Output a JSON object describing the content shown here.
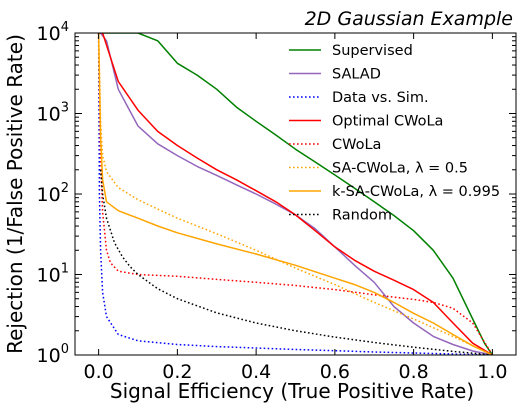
{
  "chart_data": {
    "type": "line",
    "title": "2D Gaussian Example",
    "xlabel": "Signal Efficiency (True Positive Rate)",
    "ylabel": "Rejection (1/False Positive Rate)",
    "xlim": [
      -0.06,
      1.06
    ],
    "ylim": [
      1,
      10000
    ],
    "yscale": "log",
    "legend_position": "upper-right",
    "x_ticks": [
      {
        "value": 0.0,
        "label": "0.0"
      },
      {
        "value": 0.2,
        "label": "0.2"
      },
      {
        "value": 0.4,
        "label": "0.4"
      },
      {
        "value": 0.6,
        "label": "0.6"
      },
      {
        "value": 0.8,
        "label": "0.8"
      },
      {
        "value": 1.0,
        "label": "1.0"
      }
    ],
    "y_ticks": [
      {
        "value": 1,
        "base": "10",
        "exp": "0"
      },
      {
        "value": 10,
        "base": "10",
        "exp": "1"
      },
      {
        "value": 100,
        "base": "10",
        "exp": "2"
      },
      {
        "value": 1000,
        "base": "10",
        "exp": "3"
      },
      {
        "value": 10000,
        "base": "10",
        "exp": "4"
      }
    ],
    "series": [
      {
        "name": "Supervised",
        "color": "#008000",
        "dash": "solid",
        "x": [
          0.0,
          0.05,
          0.1,
          0.15,
          0.2,
          0.25,
          0.3,
          0.35,
          0.4,
          0.45,
          0.5,
          0.55,
          0.6,
          0.65,
          0.7,
          0.75,
          0.8,
          0.85,
          0.9,
          0.95,
          0.98,
          1.0
        ],
        "y": [
          10000,
          10000,
          10000,
          8000,
          4200,
          3000,
          2000,
          1200,
          800,
          540,
          360,
          250,
          172,
          118,
          80,
          54,
          35,
          20,
          9,
          2.8,
          1.4,
          1.0
        ]
      },
      {
        "name": "SALAD",
        "color": "#9467bd",
        "dash": "solid",
        "x": [
          0.0,
          0.005,
          0.02,
          0.05,
          0.1,
          0.15,
          0.2,
          0.25,
          0.3,
          0.35,
          0.4,
          0.45,
          0.5,
          0.55,
          0.6,
          0.65,
          0.7,
          0.75,
          0.8,
          0.85,
          0.9,
          0.95,
          1.0
        ],
        "y": [
          10000,
          10000,
          8000,
          2000,
          700,
          420,
          300,
          220,
          170,
          130,
          100,
          75,
          55,
          37,
          22,
          13,
          8,
          4,
          2.5,
          1.7,
          1.35,
          1.12,
          1.0
        ]
      },
      {
        "name": "Data vs. Sim.",
        "color": "#0000ff",
        "dash": "dotted",
        "x": [
          0.0,
          0.002,
          0.005,
          0.01,
          0.02,
          0.05,
          0.1,
          0.2,
          0.3,
          0.4,
          0.5,
          0.6,
          0.7,
          0.8,
          0.9,
          1.0
        ],
        "y": [
          10000,
          100,
          20,
          6,
          3,
          1.8,
          1.5,
          1.35,
          1.27,
          1.22,
          1.17,
          1.13,
          1.09,
          1.06,
          1.03,
          1.0
        ]
      },
      {
        "name": "Optimal CWoLa",
        "color": "#ff0000",
        "dash": "solid",
        "x": [
          0.0,
          0.01,
          0.03,
          0.05,
          0.1,
          0.15,
          0.2,
          0.25,
          0.3,
          0.35,
          0.4,
          0.45,
          0.5,
          0.55,
          0.6,
          0.65,
          0.7,
          0.75,
          0.8,
          0.85,
          0.9,
          0.95,
          1.0
        ],
        "y": [
          10000,
          10000,
          5000,
          2500,
          1100,
          600,
          400,
          280,
          200,
          150,
          110,
          80,
          55,
          35,
          22,
          15,
          11,
          8.5,
          6.5,
          4.5,
          2.5,
          1.4,
          1.0
        ]
      },
      {
        "name": "CWoLa",
        "color": "#ff0000",
        "dash": "dotted",
        "x": [
          0.0,
          0.002,
          0.005,
          0.01,
          0.02,
          0.03,
          0.05,
          0.1,
          0.2,
          0.3,
          0.4,
          0.5,
          0.6,
          0.7,
          0.8,
          0.85,
          0.9,
          0.95,
          1.0
        ],
        "y": [
          10000,
          2000,
          300,
          60,
          20,
          14,
          11,
          10,
          9.5,
          8.7,
          8.0,
          7.3,
          6.5,
          5.6,
          4.9,
          4.5,
          3.8,
          2.5,
          1.0
        ]
      },
      {
        "name": "SA-CWoLa, λ = 0.5",
        "color": "#ffa500",
        "dash": "dotted",
        "x": [
          0.0,
          0.005,
          0.01,
          0.02,
          0.05,
          0.1,
          0.15,
          0.2,
          0.3,
          0.4,
          0.5,
          0.6,
          0.7,
          0.8,
          0.9,
          1.0
        ],
        "y": [
          10000,
          800,
          300,
          190,
          120,
          85,
          65,
          50,
          32,
          20,
          12,
          7.5,
          4.5,
          2.8,
          1.7,
          1.0
        ]
      },
      {
        "name": "k-SA-CWoLa, λ = 0.995",
        "color": "#ffa500",
        "dash": "solid",
        "x": [
          0.0,
          0.005,
          0.01,
          0.02,
          0.05,
          0.1,
          0.15,
          0.2,
          0.3,
          0.4,
          0.5,
          0.6,
          0.65,
          0.7,
          0.75,
          0.8,
          0.85,
          0.9,
          0.95,
          1.0
        ],
        "y": [
          10000,
          500,
          150,
          80,
          62,
          50,
          40,
          33,
          24,
          18,
          13,
          9,
          7.5,
          6.0,
          4.5,
          3.3,
          2.5,
          1.8,
          1.3,
          1.0
        ]
      },
      {
        "name": "Random",
        "color": "#000000",
        "dash": "dotted",
        "x": [
          0.005,
          0.01,
          0.02,
          0.04,
          0.06,
          0.08,
          0.1,
          0.15,
          0.2,
          0.3,
          0.4,
          0.5,
          0.6,
          0.7,
          0.8,
          0.9,
          1.0
        ],
        "y": [
          200,
          100,
          50,
          25,
          16.7,
          12.5,
          10,
          6.67,
          5,
          3.33,
          2.5,
          2,
          1.67,
          1.43,
          1.25,
          1.11,
          1.0
        ]
      }
    ]
  }
}
